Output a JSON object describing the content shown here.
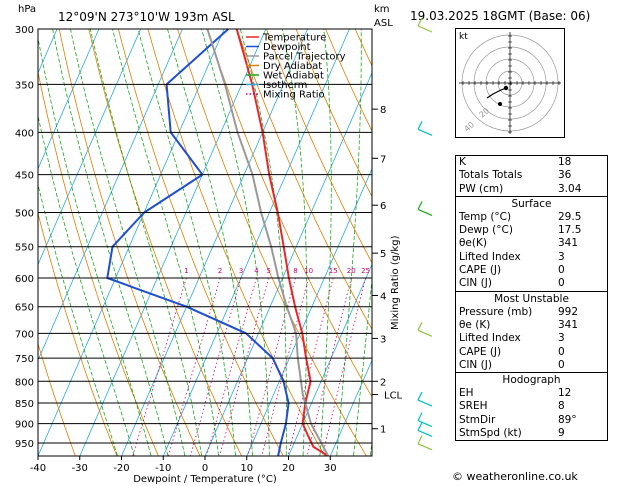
{
  "header": {
    "left_unit": "hPa",
    "location": "12°09'N  273°10'W  193m  ASL",
    "km_unit": "km",
    "asl_unit": "ASL",
    "datetime": "19.03.2025  18GMT  (Base: 06)"
  },
  "axes": {
    "xlabel": "Dewpoint / Temperature (°C)",
    "right_label": "Mixing Ratio (g/kg)",
    "lcl_label": "LCL"
  },
  "legend": [
    {
      "name": "Temperature",
      "color": "#e8262b"
    },
    {
      "name": "Dewpoint",
      "color": "#1f4fd0"
    },
    {
      "name": "Parcel Trajectory",
      "color": "#999999"
    },
    {
      "name": "Dry Adiabat",
      "color": "#e07d00"
    },
    {
      "name": "Wet Adiabat",
      "color": "#1aa81a"
    },
    {
      "name": "Isotherm",
      "color": "#2aa9e0"
    },
    {
      "name": "Mixing Ratio",
      "color": "#d0007a",
      "dotted": true
    }
  ],
  "chart_data": {
    "type": "line",
    "title": "",
    "x_ticks": [
      -40,
      -30,
      -20,
      -10,
      0,
      10,
      20,
      30
    ],
    "p_ticks": [
      300,
      350,
      400,
      450,
      500,
      550,
      600,
      650,
      700,
      750,
      800,
      850,
      900,
      950
    ],
    "p_range": [
      300,
      985
    ],
    "x_range": [
      -40,
      40
    ],
    "skew_degC_per_log": 37.5,
    "km_ticks": [
      {
        "km": "1",
        "p": 913
      },
      {
        "km": "2",
        "p": 800
      },
      {
        "km": "3",
        "p": 710
      },
      {
        "km": "4",
        "p": 630
      },
      {
        "km": "5",
        "p": 560
      },
      {
        "km": "6",
        "p": 490
      },
      {
        "km": "7",
        "p": 430
      },
      {
        "km": "8",
        "p": 375
      }
    ],
    "lcl_p": 830,
    "mixing_ratios": [
      "1",
      "2",
      "3",
      "4",
      "5",
      "8",
      "10",
      "15",
      "20",
      "25"
    ],
    "mixing_ratio_values": [
      1,
      2,
      3,
      4,
      5,
      8,
      10,
      15,
      20,
      25
    ],
    "series": [
      {
        "name": "Temperature",
        "color": "#e8262b",
        "points": [
          [
            985,
            29.5
          ],
          [
            960,
            25
          ],
          [
            930,
            22.5
          ],
          [
            900,
            20
          ],
          [
            850,
            18.5
          ],
          [
            800,
            17.5
          ],
          [
            750,
            14
          ],
          [
            700,
            10.5
          ],
          [
            650,
            6
          ],
          [
            600,
            1.5
          ],
          [
            550,
            -3
          ],
          [
            500,
            -8
          ],
          [
            450,
            -14
          ],
          [
            400,
            -20
          ],
          [
            350,
            -27.5
          ],
          [
            320,
            -33
          ],
          [
            300,
            -37
          ]
        ]
      },
      {
        "name": "Dewpoint",
        "color": "#1f4fd0",
        "points": [
          [
            985,
            17.5
          ],
          [
            950,
            16.8
          ],
          [
            900,
            16
          ],
          [
            850,
            14.5
          ],
          [
            800,
            11
          ],
          [
            750,
            6
          ],
          [
            700,
            -3
          ],
          [
            650,
            -20
          ],
          [
            600,
            -42
          ],
          [
            550,
            -44
          ],
          [
            500,
            -40
          ],
          [
            450,
            -30
          ],
          [
            400,
            -42
          ],
          [
            350,
            -48
          ],
          [
            300,
            -39
          ]
        ]
      },
      {
        "name": "Parcel Trajectory",
        "color": "#999999",
        "points": [
          [
            985,
            29.5
          ],
          [
            900,
            22
          ],
          [
            830,
            17
          ],
          [
            750,
            12
          ],
          [
            700,
            9
          ],
          [
            650,
            4
          ],
          [
            600,
            -1
          ],
          [
            550,
            -6
          ],
          [
            500,
            -12
          ],
          [
            450,
            -18
          ],
          [
            400,
            -26
          ],
          [
            350,
            -34
          ],
          [
            300,
            -44
          ]
        ]
      }
    ],
    "wind_barbs": [
      {
        "p": 300,
        "color": "#8cc63e"
      },
      {
        "p": 400,
        "color": "#00c0c0"
      },
      {
        "p": 500,
        "color": "#1aa81a"
      },
      {
        "p": 700,
        "color": "#8cc63e"
      },
      {
        "p": 850,
        "color": "#00c0c0"
      },
      {
        "p": 900,
        "color": "#00c0c0"
      },
      {
        "p": 925,
        "color": "#00c0c0"
      },
      {
        "p": 960,
        "color": "#8cc63e"
      }
    ]
  },
  "hodograph": {
    "label": "kt",
    "ring_labels": [
      "20",
      "40"
    ]
  },
  "indices": {
    "basic": [
      {
        "label": "K",
        "value": "18"
      },
      {
        "label": "Totals Totals",
        "value": "36"
      },
      {
        "label": "PW (cm)",
        "value": "3.04"
      }
    ],
    "surface_title": "Surface",
    "surface": [
      {
        "label": "Temp (°C)",
        "value": "29.5"
      },
      {
        "label": "Dewp (°C)",
        "value": "17.5"
      },
      {
        "label": "θe(K)",
        "value": "341"
      },
      {
        "label": "Lifted Index",
        "value": "3"
      },
      {
        "label": "CAPE (J)",
        "value": "0"
      },
      {
        "label": "CIN (J)",
        "value": "0"
      }
    ],
    "mu_title": "Most Unstable",
    "mu": [
      {
        "label": "Pressure (mb)",
        "value": "992"
      },
      {
        "label": "θe (K)",
        "value": "341"
      },
      {
        "label": "Lifted Index",
        "value": "3"
      },
      {
        "label": "CAPE (J)",
        "value": "0"
      },
      {
        "label": "CIN (J)",
        "value": "0"
      }
    ],
    "hodo_title": "Hodograph",
    "hodo": [
      {
        "label": "EH",
        "value": "12"
      },
      {
        "label": "SREH",
        "value": "8"
      },
      {
        "label": "StmDir",
        "value": "89°"
      },
      {
        "label": "StmSpd (kt)",
        "value": "9"
      }
    ]
  },
  "credit": "© weatheronline.co.uk"
}
